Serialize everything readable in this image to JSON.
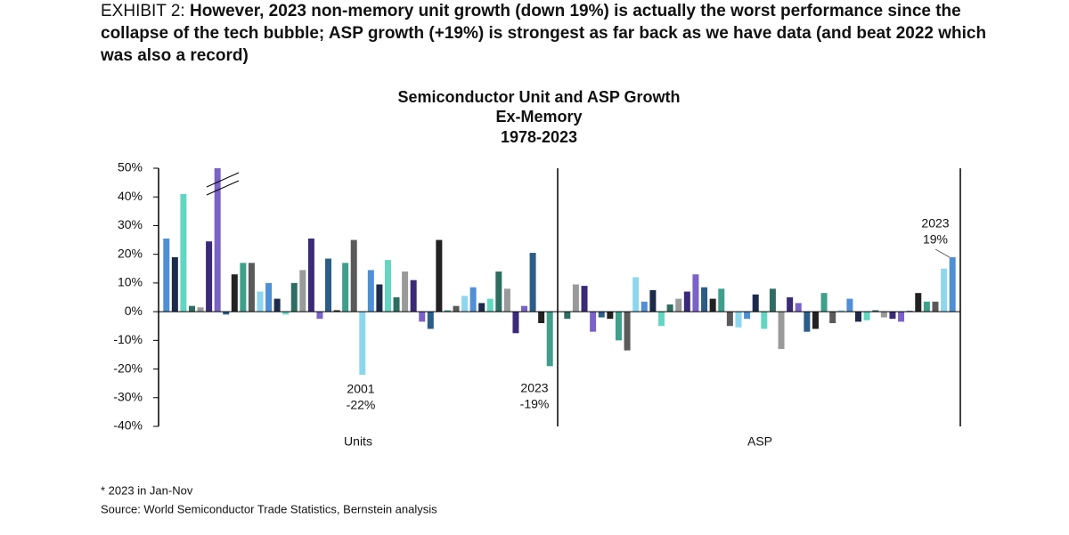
{
  "header": {
    "label": "EXHIBIT 2:",
    "text": "However, 2023 non-memory unit growth (down 19%) is actually the worst performance since the collapse of the tech bubble; ASP growth (+19%) is strongest as far back as we have data (and beat 2022 which was also a record)"
  },
  "chart_data": {
    "type": "bar",
    "title": "Semiconductor Unit and ASP Growth",
    "subtitle": "Ex-Memory",
    "period": "1978-2023",
    "ylim": [
      -40,
      50
    ],
    "yticks": [
      {
        "value": -40,
        "label": "-40%"
      },
      {
        "value": -30,
        "label": "-30%"
      },
      {
        "value": -20,
        "label": "-20%"
      },
      {
        "value": -10,
        "label": "-10%"
      },
      {
        "value": 0,
        "label": "0%"
      },
      {
        "value": 10,
        "label": "10%"
      },
      {
        "value": 20,
        "label": "20%"
      },
      {
        "value": 30,
        "label": "30%"
      },
      {
        "value": 40,
        "label": "40%"
      },
      {
        "value": 50,
        "label": "50%"
      }
    ],
    "colors": [
      "#4f8fd6",
      "#1c2b4c",
      "#63d6c2",
      "#2e6e62",
      "#9a9a9a",
      "#3a2a78",
      "#7a62c8",
      "#2b5d88",
      "#222222",
      "#3f9f8a",
      "#5a5a5a",
      "#8ed6ee"
    ],
    "series": [
      {
        "name": "Units",
        "values": [
          25.5,
          19,
          41,
          2,
          1.5,
          24.5,
          50,
          -1,
          13,
          17,
          17,
          7,
          10,
          4.5,
          -1,
          10,
          14.5,
          25.5,
          -2.5,
          18.5,
          0.5,
          17,
          25,
          -22,
          14.5,
          9.5,
          18,
          5,
          14,
          11,
          -3.5,
          -6,
          25,
          0.5,
          2,
          5.5,
          8.5,
          3,
          4.5,
          14,
          8,
          -7.5,
          2,
          20.5,
          -4,
          -19
        ]
      },
      {
        "name": "ASP",
        "values": [
          -2.5,
          9.5,
          9,
          -7,
          -2,
          -2.5,
          -10,
          -13.5,
          12,
          3.5,
          7.5,
          -5,
          2.5,
          4.5,
          7,
          13,
          8.5,
          4.5,
          8,
          -5,
          -5.5,
          -2.5,
          6,
          -6,
          8,
          -13,
          5,
          3,
          -7,
          -6,
          6.5,
          -4,
          0.5,
          4.5,
          -3.5,
          -3,
          0.5,
          -2,
          -2.5,
          -3.5,
          0.3,
          6.5,
          3.5,
          3.5,
          15,
          19
        ]
      }
    ],
    "annotations": [
      {
        "lines": [
          "2001",
          "-22%"
        ]
      },
      {
        "lines": [
          "2023",
          "-19%"
        ]
      },
      {
        "lines": [
          "2023",
          "19%"
        ]
      }
    ]
  },
  "footer": {
    "note": "* 2023 in Jan-Nov",
    "source": "Source: World Semiconductor Trade Statistics, Bernstein analysis"
  }
}
